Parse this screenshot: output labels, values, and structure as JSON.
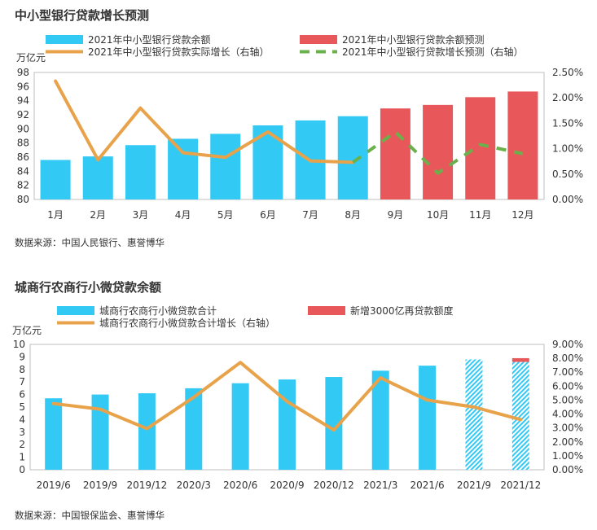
{
  "charts": [
    {
      "title": "中小型银行贷款增长预测",
      "source": "数据来源：中国人民银行、惠誉博华"
    },
    {
      "title": "城商行农商行小微贷款余额",
      "source": "数据来源：中国银保监会、惠誉博华"
    }
  ],
  "colors": {
    "blue": "#33c9f5",
    "red": "#e8585a",
    "orange": "#e8a24a",
    "green": "#6ab04c"
  },
  "chart_data": [
    {
      "type": "bar",
      "title": "中小型银行贷款增长预测",
      "ylabel": "万亿元",
      "ylim": [
        80,
        98
      ],
      "y2lim": [
        0,
        2.5
      ],
      "yticks": [
        "80",
        "82",
        "84",
        "86",
        "88",
        "90",
        "92",
        "94",
        "96",
        "98"
      ],
      "y2ticks": [
        "0.00%",
        "0.50%",
        "1.00%",
        "1.50%",
        "2.00%",
        "2.50%"
      ],
      "categories": [
        "1月",
        "2月",
        "3月",
        "4月",
        "5月",
        "6月",
        "7月",
        "8月",
        "9月",
        "10月",
        "11月",
        "12月"
      ],
      "legend": "top",
      "series": [
        {
          "name": "2021年中小型银行贷款余额",
          "kind": "bar",
          "color": "#33c9f5",
          "values": [
            85.6,
            86.1,
            87.7,
            88.6,
            89.3,
            90.5,
            91.2,
            91.8,
            null,
            null,
            null,
            null
          ]
        },
        {
          "name": "2021年中小型银行贷款余额预测",
          "kind": "bar",
          "color": "#e8585a",
          "values": [
            null,
            null,
            null,
            null,
            null,
            null,
            null,
            null,
            92.9,
            93.4,
            94.5,
            95.3
          ]
        },
        {
          "name": "2021年中小型银行贷款实际增长（右轴）",
          "kind": "line",
          "axis": "right",
          "color": "#e8a24a",
          "values": [
            2.33,
            0.78,
            1.8,
            0.92,
            0.83,
            1.33,
            0.76,
            0.73,
            null,
            null,
            null,
            null
          ]
        },
        {
          "name": "2021年中小型银行贷款增长预测（右轴）",
          "kind": "dashed",
          "axis": "right",
          "color": "#6ab04c",
          "values": [
            null,
            null,
            null,
            null,
            null,
            null,
            null,
            0.73,
            1.33,
            0.52,
            1.08,
            0.9
          ]
        }
      ]
    },
    {
      "type": "bar",
      "title": "城商行农商行小微贷款余额",
      "ylabel": "万亿元",
      "ylim": [
        0,
        10
      ],
      "y2lim": [
        0,
        9
      ],
      "yticks": [
        "0",
        "1",
        "2",
        "3",
        "4",
        "5",
        "6",
        "7",
        "8",
        "9",
        "10"
      ],
      "y2ticks": [
        "0.00%",
        "1.00%",
        "2.00%",
        "3.00%",
        "4.00%",
        "5.00%",
        "6.00%",
        "7.00%",
        "8.00%",
        "9.00%"
      ],
      "categories": [
        "2019/6",
        "2019/9",
        "2019/12",
        "2020/3",
        "2020/6",
        "2020/9",
        "2020/12",
        "2021/3",
        "2021/6",
        "2021/9",
        "2021/12"
      ],
      "legend": "top",
      "series": [
        {
          "name": "城商行农商行小微贷款合计",
          "kind": "bar",
          "color": "#33c9f5",
          "values": [
            5.7,
            6.0,
            6.1,
            6.5,
            6.9,
            7.2,
            7.4,
            7.9,
            8.3,
            8.8,
            8.6
          ]
        },
        {
          "name": "新增3000亿再贷款额度",
          "kind": "bar-stack",
          "color": "#e8585a",
          "values": [
            null,
            null,
            null,
            null,
            null,
            null,
            null,
            null,
            null,
            null,
            0.3
          ]
        },
        {
          "name": "城商行农商行小微贷款合计增长（右轴）",
          "kind": "line",
          "axis": "right",
          "color": "#e8a24a",
          "values": [
            4.75,
            4.35,
            2.95,
            5.2,
            7.7,
            4.9,
            2.85,
            6.6,
            5.0,
            4.5,
            3.6
          ]
        }
      ]
    }
  ]
}
